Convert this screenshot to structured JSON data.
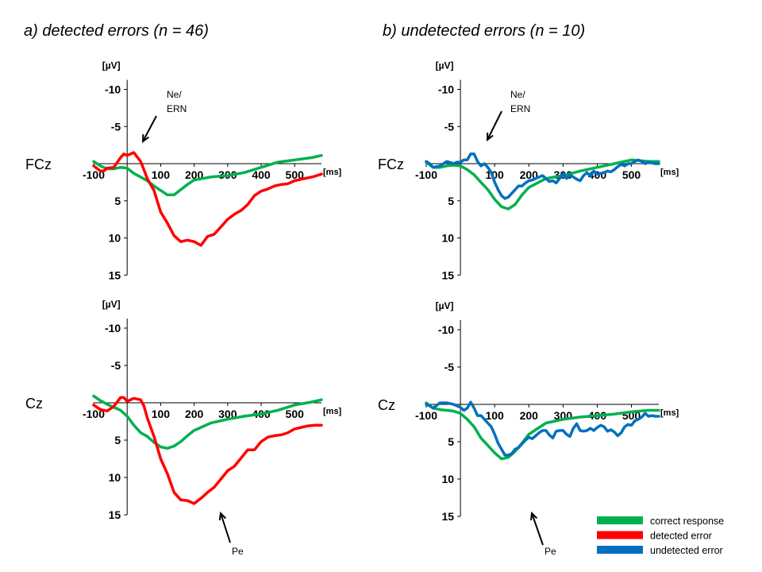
{
  "panels": {
    "a_title": "a) detected errors (n = 46)",
    "b_title": "b) undetected errors (n = 10)"
  },
  "legend": {
    "items": [
      {
        "label": "correct response",
        "color": "#00b050"
      },
      {
        "label": "detected error",
        "color": "#ff0000"
      },
      {
        "label": "undetected error",
        "color": "#0070c0"
      }
    ]
  },
  "chart_data": [
    {
      "type": "line",
      "panel": "a",
      "row_label": "FCz",
      "ylabel": "[µV]",
      "xlabel": "[ms]",
      "ylim": [
        -10,
        15
      ],
      "y_inverted": true,
      "yticks": [
        "-10",
        "-5",
        "5",
        "10",
        "15"
      ],
      "xticks": [
        "-100",
        "100",
        "200",
        "300",
        "400",
        "500"
      ],
      "annotation": "Ne/\nERN",
      "series": [
        {
          "name": "correct response",
          "color": "#00b050",
          "x": [
            -100,
            -80,
            -60,
            -40,
            -20,
            0,
            20,
            40,
            60,
            80,
            100,
            120,
            140,
            160,
            180,
            200,
            250,
            300,
            350,
            400,
            450,
            500,
            550,
            580
          ],
          "y": [
            -0.3,
            0.3,
            0.7,
            0.7,
            0.5,
            0.6,
            1.3,
            1.8,
            2.3,
            3.0,
            3.6,
            4.2,
            4.2,
            3.5,
            2.8,
            2.2,
            1.8,
            1.6,
            1.2,
            0.5,
            -0.2,
            -0.5,
            -0.8,
            -1.1
          ]
        },
        {
          "name": "detected error",
          "color": "#ff0000",
          "x": [
            -100,
            -80,
            -70,
            -60,
            -40,
            -20,
            -10,
            0,
            20,
            40,
            50,
            60,
            80,
            100,
            120,
            140,
            160,
            180,
            200,
            220,
            240,
            260,
            280,
            300,
            320,
            340,
            360,
            380,
            400,
            420,
            440,
            460,
            480,
            500,
            520,
            540,
            560,
            580
          ],
          "y": [
            0.3,
            1.0,
            1.0,
            0.6,
            0.5,
            -0.8,
            -1.3,
            -1.1,
            -1.5,
            -0.3,
            0.8,
            2.0,
            3.6,
            6.5,
            8.0,
            9.7,
            10.5,
            10.3,
            10.5,
            11.0,
            9.8,
            9.5,
            8.5,
            7.5,
            6.8,
            6.3,
            5.5,
            4.3,
            3.7,
            3.4,
            3.0,
            2.8,
            2.7,
            2.3,
            2.1,
            1.9,
            1.7,
            1.4
          ]
        }
      ]
    },
    {
      "type": "line",
      "panel": "b",
      "row_label": "FCz",
      "ylabel": "[µV]",
      "xlabel": "[ms]",
      "ylim": [
        -10,
        15
      ],
      "y_inverted": true,
      "yticks": [
        "-10",
        "-5",
        "5",
        "10",
        "15"
      ],
      "xticks": [
        "-100",
        "100",
        "200",
        "300",
        "400",
        "500"
      ],
      "annotation": "Ne/\nERN",
      "series": [
        {
          "name": "correct response",
          "color": "#00b050",
          "x": [
            -100,
            -80,
            -60,
            -40,
            -20,
            0,
            20,
            40,
            60,
            80,
            100,
            120,
            140,
            160,
            180,
            200,
            250,
            300,
            350,
            400,
            450,
            500,
            550,
            580
          ],
          "y": [
            -0.2,
            0.5,
            0.5,
            0.3,
            0.2,
            0.3,
            0.8,
            1.5,
            2.5,
            3.5,
            4.8,
            5.8,
            6.1,
            5.5,
            4.2,
            3.2,
            2.0,
            1.6,
            1.0,
            0.5,
            0,
            -0.5,
            -0.3,
            -0.3
          ]
        },
        {
          "name": "undetected error",
          "color": "#0070c0",
          "x": [
            -100,
            -90,
            -80,
            -60,
            -40,
            -20,
            -10,
            0,
            10,
            20,
            30,
            40,
            50,
            60,
            70,
            80,
            90,
            100,
            110,
            120,
            130,
            140,
            150,
            160,
            170,
            180,
            190,
            200,
            210,
            220,
            230,
            240,
            250,
            260,
            270,
            280,
            290,
            300,
            310,
            320,
            330,
            340,
            350,
            360,
            370,
            380,
            390,
            400,
            410,
            420,
            430,
            440,
            450,
            460,
            470,
            480,
            490,
            500,
            510,
            520,
            530,
            540,
            550,
            560,
            570,
            580
          ],
          "y": [
            -0.3,
            0,
            0.5,
            0.3,
            -0.3,
            0.0,
            -0.2,
            -0.2,
            -0.5,
            -0.5,
            -1.3,
            -1.3,
            -0.3,
            0.3,
            0.0,
            0.5,
            1.2,
            2.5,
            3.5,
            4.3,
            4.7,
            4.5,
            4.0,
            3.5,
            3.0,
            3.0,
            2.6,
            2.3,
            2.2,
            2.0,
            1.8,
            1.6,
            2.0,
            2.4,
            2.3,
            2.6,
            2.0,
            1.3,
            2.0,
            1.5,
            1.8,
            2.1,
            2.3,
            1.6,
            1.2,
            1.7,
            1.0,
            1.4,
            1.3,
            1.2,
            1.0,
            1.1,
            0.8,
            0.4,
            0.1,
            0.3,
            0,
            0,
            -0.3,
            -0.5,
            -0.3,
            0.0,
            -0.2,
            -0.1,
            0.0,
            0.0
          ]
        }
      ]
    },
    {
      "type": "line",
      "panel": "a",
      "row_label": "Cz",
      "ylabel": "[µV]",
      "xlabel": "[ms]",
      "ylim": [
        -10,
        15
      ],
      "y_inverted": true,
      "yticks": [
        "-10",
        "-5",
        "5",
        "10",
        "15"
      ],
      "xticks": [
        "-100",
        "100",
        "200",
        "300",
        "400",
        "500"
      ],
      "annotation": "Pe",
      "series": [
        {
          "name": "correct response",
          "color": "#00b050",
          "x": [
            -100,
            -80,
            -60,
            -40,
            -20,
            0,
            20,
            40,
            60,
            80,
            100,
            120,
            140,
            160,
            180,
            200,
            250,
            300,
            350,
            400,
            450,
            500,
            550,
            580
          ],
          "y": [
            -0.9,
            -0.3,
            0.2,
            0.6,
            1.0,
            1.8,
            3.0,
            4.0,
            4.5,
            5.3,
            5.9,
            6.1,
            5.8,
            5.2,
            4.4,
            3.7,
            2.7,
            2.2,
            1.8,
            1.5,
            1.0,
            0.3,
            -0.1,
            -0.4
          ]
        },
        {
          "name": "detected error",
          "color": "#ff0000",
          "x": [
            -100,
            -80,
            -60,
            -40,
            -20,
            -10,
            0,
            20,
            40,
            50,
            60,
            80,
            100,
            120,
            140,
            160,
            180,
            200,
            220,
            240,
            260,
            280,
            300,
            320,
            340,
            360,
            380,
            400,
            420,
            440,
            460,
            480,
            500,
            520,
            540,
            560,
            580
          ],
          "y": [
            0.3,
            0.9,
            1.1,
            0.5,
            -0.7,
            -0.7,
            -0.2,
            -0.6,
            -0.4,
            0.4,
            2.0,
            4.5,
            7.5,
            9.5,
            12.0,
            13.0,
            13.1,
            13.5,
            12.8,
            12.0,
            11.3,
            10.2,
            9.1,
            8.5,
            7.4,
            6.3,
            6.3,
            5.2,
            4.6,
            4.4,
            4.3,
            4.0,
            3.5,
            3.3,
            3.1,
            3.0,
            3.0
          ]
        }
      ]
    },
    {
      "type": "line",
      "panel": "b",
      "row_label": "Cz",
      "ylabel": "[µV]",
      "xlabel": "[ms]",
      "ylim": [
        -10,
        15
      ],
      "y_inverted": true,
      "yticks": [
        "-10",
        "-5",
        "5",
        "10",
        "15"
      ],
      "xticks": [
        "-100",
        "100",
        "200",
        "300",
        "400",
        "500"
      ],
      "annotation": "Pe",
      "series": [
        {
          "name": "correct response",
          "color": "#00b050",
          "x": [
            -100,
            -80,
            -60,
            -40,
            -20,
            0,
            20,
            40,
            60,
            80,
            100,
            120,
            140,
            160,
            180,
            200,
            250,
            300,
            350,
            400,
            450,
            500,
            550,
            580
          ],
          "y": [
            -0.2,
            0.5,
            0.7,
            0.8,
            0.9,
            1.2,
            2.0,
            3.0,
            4.5,
            5.5,
            6.5,
            7.3,
            7.1,
            6.3,
            5.2,
            4.0,
            2.5,
            2.0,
            1.7,
            1.5,
            1.3,
            1.0,
            0.8,
            0.8
          ]
        },
        {
          "name": "undetected error",
          "color": "#0070c0",
          "x": [
            -100,
            -90,
            -80,
            -60,
            -40,
            -20,
            0,
            10,
            20,
            30,
            40,
            50,
            60,
            70,
            80,
            90,
            100,
            110,
            120,
            130,
            140,
            150,
            160,
            170,
            180,
            190,
            200,
            210,
            220,
            230,
            240,
            250,
            260,
            270,
            280,
            290,
            300,
            310,
            320,
            330,
            340,
            350,
            360,
            370,
            380,
            390,
            400,
            410,
            420,
            430,
            440,
            450,
            460,
            470,
            480,
            490,
            500,
            510,
            520,
            530,
            540,
            550,
            560,
            570,
            580
          ],
          "y": [
            0.0,
            0.2,
            0.5,
            -0.2,
            -0.2,
            0.0,
            0.4,
            0.8,
            0.5,
            -0.3,
            0.5,
            1.5,
            1.5,
            2.0,
            2.5,
            3.0,
            4.0,
            5.2,
            6.0,
            6.8,
            6.8,
            6.6,
            6.0,
            5.8,
            5.3,
            4.8,
            4.4,
            4.6,
            4.2,
            3.8,
            3.5,
            3.5,
            4.1,
            4.5,
            3.6,
            3.5,
            3.5,
            4.0,
            4.3,
            3.2,
            2.6,
            3.5,
            3.6,
            3.5,
            3.2,
            3.5,
            3.1,
            2.8,
            3.0,
            3.6,
            3.4,
            3.7,
            4.2,
            3.8,
            3.0,
            2.7,
            2.8,
            2.2,
            2.0,
            1.7,
            1.2,
            1.6,
            1.5,
            1.6,
            1.6
          ]
        }
      ]
    }
  ]
}
